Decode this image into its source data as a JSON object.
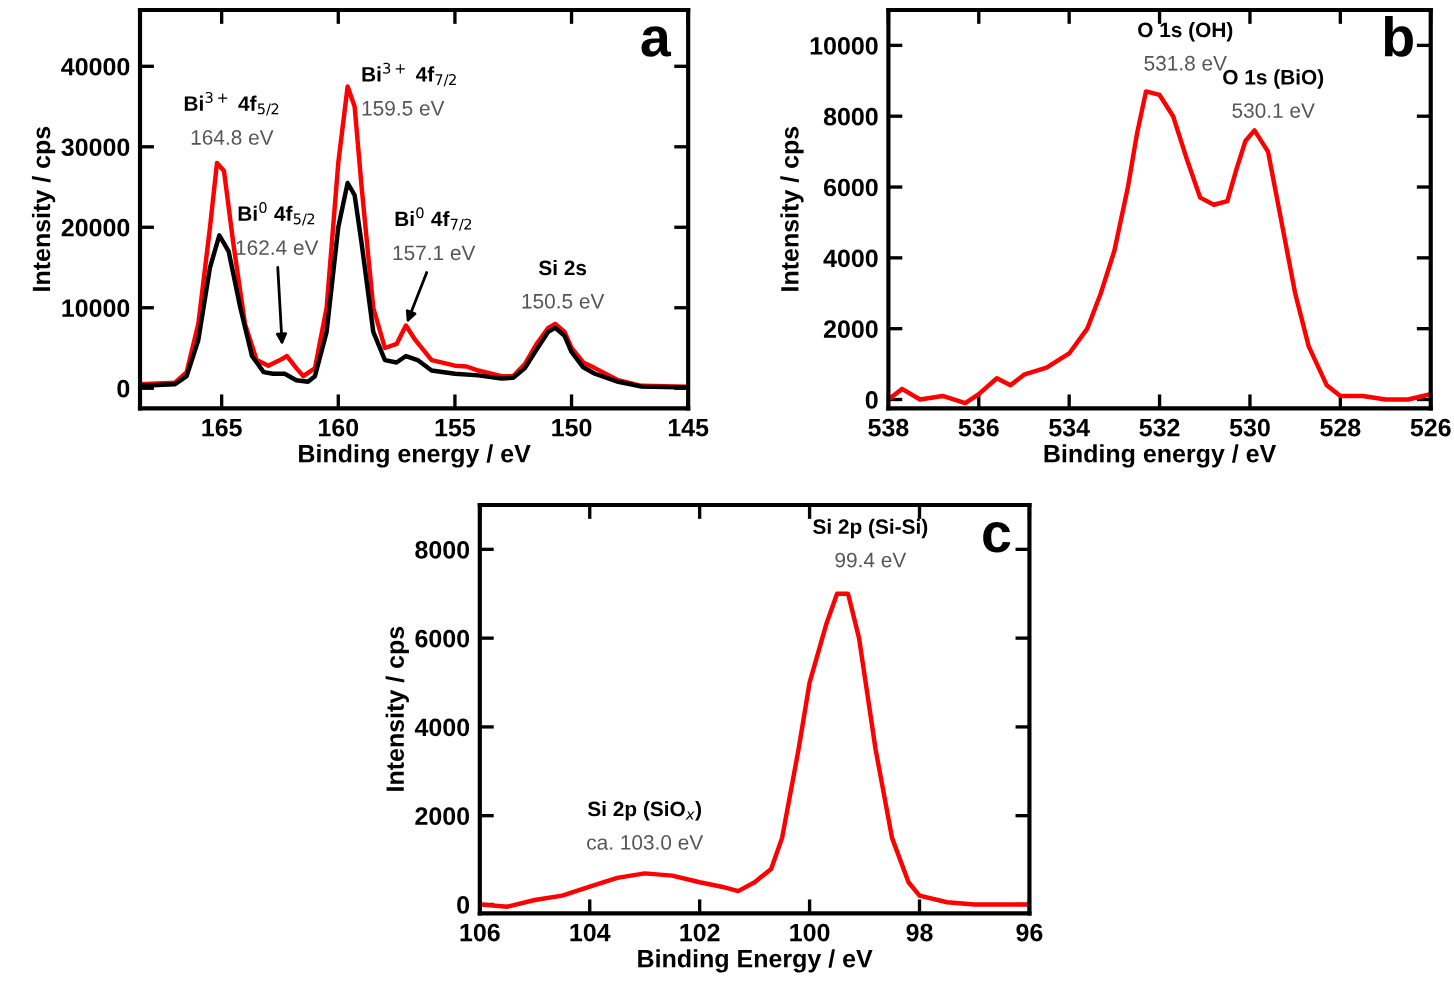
{
  "chart_data": [
    {
      "type": "line",
      "xlabel": "Binding energy / eV",
      "ylabel": "Intensity / cps",
      "xlim": [
        168.5,
        145
      ],
      "ylim": [
        -2500,
        47000
      ],
      "xticks": [
        165,
        160,
        155,
        150,
        145
      ],
      "yticks": [
        0,
        10000,
        20000,
        30000,
        40000
      ],
      "series": [
        {
          "color": "#ff0000",
          "x": [
            168.5,
            167,
            166.5,
            166,
            165.5,
            165.2,
            164.9,
            164.5,
            164,
            163.5,
            163,
            162.5,
            162.2,
            161.8,
            161.5,
            161,
            160.5,
            160,
            159.6,
            159.3,
            159,
            158.5,
            158,
            157.5,
            157.1,
            156.7,
            156,
            155,
            154.5,
            154,
            153,
            152.5,
            152,
            151.5,
            151,
            150.7,
            150.3,
            150,
            149.5,
            149,
            148,
            147,
            145
          ],
          "values": [
            500,
            700,
            2000,
            8000,
            20000,
            28000,
            27000,
            18000,
            8000,
            3500,
            2800,
            3500,
            4000,
            2500,
            1500,
            2500,
            10000,
            28000,
            37500,
            35000,
            25000,
            10000,
            5000,
            5500,
            7800,
            6000,
            3500,
            2800,
            2700,
            2200,
            1500,
            1500,
            3000,
            5500,
            7500,
            8000,
            7000,
            5000,
            3200,
            2500,
            1000,
            300,
            200
          ]
        },
        {
          "color": "#000000",
          "x": [
            168.5,
            167,
            166.5,
            166,
            165.5,
            165.1,
            164.7,
            164.2,
            163.7,
            163.2,
            162.8,
            162.3,
            161.8,
            161.3,
            161,
            160.5,
            160,
            159.6,
            159.3,
            159,
            158.5,
            158,
            157.5,
            157.1,
            156.6,
            156,
            155,
            154,
            153,
            152.5,
            152,
            151.5,
            151,
            150.7,
            150.3,
            150,
            149.5,
            149,
            148,
            147,
            145
          ],
          "values": [
            300,
            500,
            1500,
            6000,
            15000,
            19000,
            17000,
            10000,
            4000,
            2000,
            1800,
            1800,
            1000,
            800,
            1500,
            7000,
            20000,
            25500,
            24000,
            18000,
            7000,
            3500,
            3200,
            4000,
            3500,
            2200,
            1800,
            1600,
            1200,
            1300,
            2500,
            4800,
            7000,
            7500,
            6500,
            4500,
            2600,
            1800,
            800,
            200,
            100
          ]
        }
      ],
      "annotations": [
        {
          "text": "Bi$^{3+}$ 4f$_{5/2}$",
          "x": 164.8,
          "y": 28000
        },
        {
          "text": "164.8 eV",
          "x": 164.8,
          "y": 28000
        },
        "Bi$^{0}$ 4f$_{5/2}$",
        {
          "text": "162.4 eV",
          "x": 162.4,
          "y": 5000
        },
        {
          "text": "Bi$^{3+}$ 4f$_{7/2}$",
          "x": 159.5,
          "y": 37500
        },
        {
          "text": "159.5 eV",
          "x": 159.5,
          "y": 37500
        },
        "Bi$^{0}$ 4f$_{7/2}$",
        {
          "text": "157.1 eV",
          "x": 157.1,
          "y": 7800
        },
        {
          "text": "Si 2s",
          "x": 150.5,
          "y": 8000
        },
        {
          "text": "150.5 eV",
          "x": 150.5,
          "y": 8000
        },
        "a"
      ]
    },
    {
      "type": "line",
      "xlabel": "Binding energy / eV",
      "ylabel": "Intensity / cps",
      "xlim": [
        538,
        526
      ],
      "ylim": [
        -250,
        11000
      ],
      "xticks": [
        538,
        536,
        534,
        532,
        530,
        528,
        526
      ],
      "yticks": [
        0,
        2000,
        4000,
        6000,
        8000,
        10000
      ],
      "series": [
        {
          "color": "#ff0000",
          "x": [
            538,
            537.7,
            537.3,
            536.8,
            536.3,
            536,
            535.6,
            535.3,
            535,
            534.5,
            534,
            533.6,
            533.3,
            533,
            532.7,
            532.5,
            532.3,
            532.0,
            531.7,
            531.4,
            531.1,
            530.8,
            530.5,
            530.3,
            530.1,
            529.9,
            529.6,
            529.3,
            529,
            528.7,
            528.3,
            528,
            527.5,
            527,
            526.5,
            526
          ],
          "values": [
            0,
            300,
            0,
            100,
            -100,
            150,
            600,
            400,
            700,
            900,
            1300,
            2000,
            3000,
            4200,
            6000,
            7500,
            8700,
            8600,
            8000,
            6800,
            5700,
            5500,
            5600,
            6500,
            7300,
            7600,
            7000,
            5000,
            3000,
            1500,
            400,
            100,
            100,
            0,
            0,
            150
          ]
        }
      ],
      "annotations": [
        {
          "text": "O 1s (OH)",
          "x": 531.8,
          "y": 8700
        },
        {
          "text": "531.8 eV",
          "x": 531.8,
          "y": 8700
        },
        {
          "text": "O 1s (BiO)",
          "x": 530.1,
          "y": 7600
        },
        {
          "text": "530.1 eV",
          "x": 530.1,
          "y": 7600
        },
        "b"
      ]
    },
    {
      "type": "line",
      "xlabel": "Binding Energy / eV",
      "ylabel": "Intensity / cps",
      "xlim": [
        106,
        96
      ],
      "ylim": [
        -200,
        9000
      ],
      "xticks": [
        106,
        104,
        102,
        100,
        98,
        96
      ],
      "yticks": [
        0,
        2000,
        4000,
        6000,
        8000
      ],
      "series": [
        {
          "color": "#ff0000",
          "x": [
            106,
            105.5,
            105,
            104.5,
            104,
            103.5,
            103,
            102.5,
            102,
            101.6,
            101.3,
            101,
            100.7,
            100.5,
            100.2,
            100,
            99.7,
            99.5,
            99.3,
            99.1,
            98.8,
            98.5,
            98.2,
            98,
            97.5,
            97,
            96.5,
            96
          ],
          "values": [
            0,
            -50,
            100,
            200,
            400,
            600,
            700,
            650,
            500,
            400,
            300,
            500,
            800,
            1500,
            3500,
            5000,
            6300,
            7000,
            7000,
            6000,
            3500,
            1500,
            500,
            200,
            50,
            0,
            0,
            0
          ]
        }
      ],
      "annotations": [
        {
          "text": "Si 2p (SiO$_{x}$)",
          "x": 103.0,
          "y": 700
        },
        {
          "text": "ca. 103.0 eV",
          "x": 103.0,
          "y": 700
        },
        {
          "text": "Si 2p (Si-Si)",
          "x": 99.4,
          "y": 7000
        },
        {
          "text": "99.4 eV",
          "x": 99.4,
          "y": 7000
        },
        "c"
      ]
    }
  ]
}
